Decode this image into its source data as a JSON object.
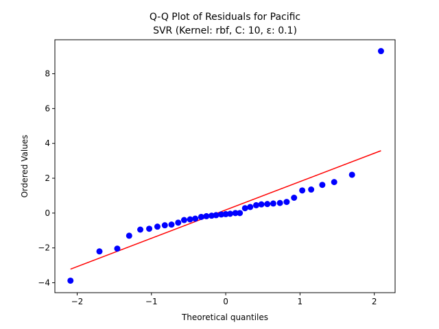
{
  "chart_data": {
    "type": "scatter",
    "title": "Q-Q Plot of Residuals for Pacific",
    "subtitle": "SVR (Kernel: rbf, C: 10, ε: 0.1)",
    "xlabel": "Theoretical quantiles",
    "ylabel": "Ordered Values",
    "xlim": [
      -2.3,
      2.28
    ],
    "ylim": [
      -4.57,
      9.95
    ],
    "xticks": [
      -2,
      -1,
      0,
      1,
      2
    ],
    "yticks": [
      -4,
      -2,
      0,
      2,
      4,
      6,
      8
    ],
    "grid": false,
    "colors": {
      "points": "#0000ff",
      "fit_line": "#ff0000"
    },
    "points": {
      "x": [
        -2.09,
        -1.7,
        -1.46,
        -1.3,
        -1.15,
        -1.03,
        -0.92,
        -0.82,
        -0.73,
        -0.64,
        -0.56,
        -0.48,
        -0.41,
        -0.33,
        -0.26,
        -0.19,
        -0.13,
        -0.06,
        0.0,
        0.06,
        0.13,
        0.19,
        0.26,
        0.33,
        0.41,
        0.48,
        0.56,
        0.64,
        0.73,
        0.82,
        0.92,
        1.03,
        1.15,
        1.3,
        1.46,
        1.7,
        2.09
      ],
      "y": [
        -3.88,
        -2.2,
        -2.04,
        -1.3,
        -0.95,
        -0.9,
        -0.78,
        -0.7,
        -0.66,
        -0.55,
        -0.4,
        -0.36,
        -0.32,
        -0.22,
        -0.18,
        -0.15,
        -0.12,
        -0.08,
        -0.06,
        -0.04,
        0.0,
        0.0,
        0.28,
        0.35,
        0.45,
        0.5,
        0.52,
        0.55,
        0.58,
        0.64,
        0.88,
        1.3,
        1.35,
        1.62,
        1.78,
        2.2,
        9.3
      ]
    },
    "fit_line": {
      "x": [
        -2.09,
        2.09
      ],
      "y": [
        -3.22,
        3.58
      ]
    }
  }
}
